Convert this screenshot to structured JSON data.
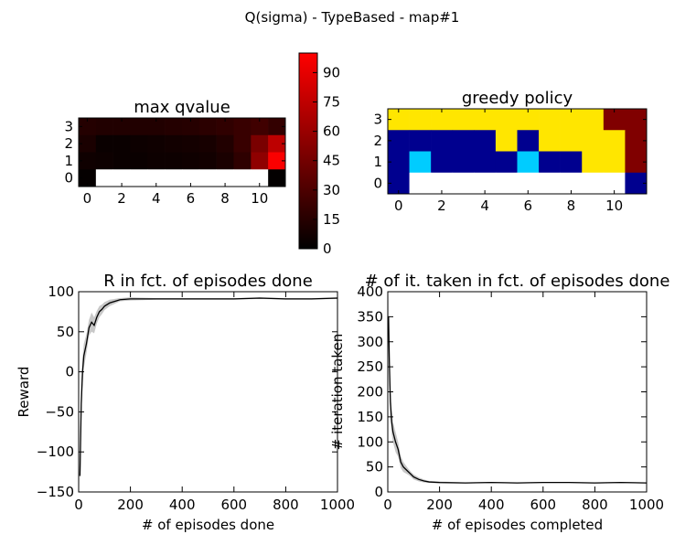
{
  "suptitle": "Q(sigma) - TypeBased - map#1",
  "chart_data": [
    {
      "type": "heatmap",
      "title": "max qvalue",
      "xticks": [
        0,
        2,
        4,
        6,
        8,
        10
      ],
      "yticks": [
        3,
        2,
        1,
        0
      ],
      "rows": [
        [
          14,
          13,
          13,
          13,
          13,
          14,
          15,
          17,
          19,
          22,
          25,
          20
        ],
        [
          10,
          4,
          4,
          5,
          6,
          7,
          8,
          9,
          13,
          22,
          48,
          74
        ],
        [
          6,
          5,
          4,
          4,
          5,
          5,
          6,
          7,
          10,
          18,
          56,
          98
        ],
        [
          2,
          null,
          null,
          null,
          null,
          null,
          null,
          null,
          null,
          null,
          null,
          1
        ]
      ],
      "colorbar": {
        "min": 0,
        "max": 100,
        "ticks": [
          0,
          15,
          30,
          45,
          60,
          75,
          90
        ]
      }
    },
    {
      "type": "heatmap",
      "title": "greedy policy",
      "xticks": [
        0,
        2,
        4,
        6,
        8,
        10
      ],
      "yticks": [
        3,
        2,
        1,
        0
      ],
      "colors": {
        "0": "#00008f",
        "1": "#00ccff",
        "2": "#ffe600",
        "3": "#800000"
      },
      "rows": [
        [
          2,
          2,
          2,
          2,
          2,
          2,
          2,
          2,
          2,
          2,
          3,
          3
        ],
        [
          0,
          0,
          0,
          0,
          0,
          2,
          0,
          2,
          2,
          2,
          2,
          3
        ],
        [
          0,
          1,
          0,
          0,
          0,
          0,
          1,
          0,
          0,
          2,
          2,
          3
        ],
        [
          0,
          null,
          null,
          null,
          null,
          null,
          null,
          null,
          null,
          null,
          null,
          0
        ]
      ]
    },
    {
      "type": "line",
      "title": "R in fct. of episodes done",
      "xlabel": "# of episodes done",
      "ylabel": "Reward",
      "xlim": [
        0,
        1000
      ],
      "ylim": [
        -150,
        100
      ],
      "xticks": [
        0,
        200,
        400,
        600,
        800,
        1000
      ],
      "yticks": [
        -150,
        -100,
        -50,
        0,
        50,
        100
      ],
      "x": [
        5,
        10,
        15,
        20,
        30,
        40,
        50,
        60,
        70,
        80,
        90,
        100,
        120,
        140,
        160,
        200,
        300,
        400,
        500,
        600,
        700,
        800,
        900,
        1000
      ],
      "y": [
        -130,
        -40,
        0,
        20,
        35,
        55,
        62,
        58,
        68,
        75,
        78,
        82,
        86,
        88,
        90,
        91,
        91,
        91,
        91,
        91,
        92,
        91,
        91,
        92
      ],
      "band": [
        25,
        22,
        18,
        15,
        12,
        10,
        12,
        10,
        8,
        7,
        6,
        5,
        4,
        3,
        2,
        2,
        1,
        1,
        1,
        1,
        1,
        1,
        1,
        1
      ]
    },
    {
      "type": "line",
      "title": "# of it. taken in fct. of episodes done",
      "xlabel": "# of episodes completed",
      "ylabel": "# iteration taken",
      "xlim": [
        0,
        1000
      ],
      "ylim": [
        0,
        400
      ],
      "xticks": [
        0,
        200,
        400,
        600,
        800,
        1000
      ],
      "yticks": [
        0,
        50,
        100,
        150,
        200,
        250,
        300,
        350,
        400
      ],
      "x": [
        3,
        6,
        10,
        15,
        20,
        30,
        40,
        50,
        60,
        70,
        80,
        90,
        100,
        120,
        140,
        160,
        200,
        300,
        400,
        500,
        600,
        700,
        800,
        900,
        1000
      ],
      "y": [
        350,
        260,
        180,
        140,
        120,
        100,
        85,
        60,
        50,
        45,
        40,
        35,
        30,
        25,
        22,
        20,
        19,
        18,
        19,
        18,
        19,
        19,
        18,
        19,
        18
      ],
      "band": [
        50,
        40,
        30,
        25,
        20,
        20,
        15,
        12,
        10,
        8,
        6,
        5,
        5,
        4,
        3,
        2,
        2,
        1,
        1,
        1,
        1,
        1,
        1,
        1,
        1
      ]
    }
  ]
}
